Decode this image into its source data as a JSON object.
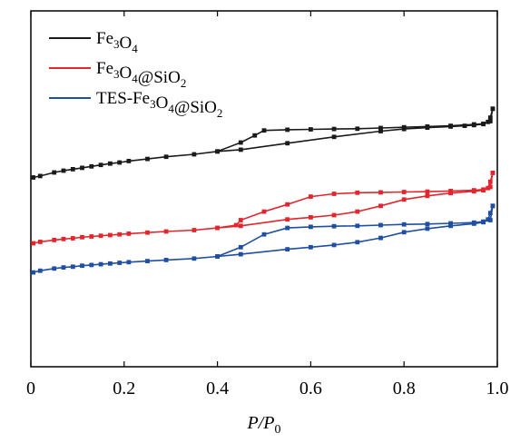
{
  "chart_data": {
    "type": "line",
    "xlabel": "P/P0",
    "xlim": [
      0,
      1.0
    ],
    "ylim": [
      0,
      1.0
    ],
    "x_ticks": [
      "0",
      "0.2",
      "0.4",
      "0.6",
      "0.8",
      "1.0"
    ],
    "x_tick_values": [
      0,
      0.2,
      0.4,
      0.6,
      0.8,
      1.0
    ],
    "legend_position": "top-left",
    "series": [
      {
        "name": "Fe3O4",
        "label_parts": [
          {
            "t": "Fe",
            "s": false
          },
          {
            "t": "3",
            "s": true
          },
          {
            "t": "O",
            "s": false
          },
          {
            "t": "4",
            "s": true
          }
        ],
        "color": "#1a1a1a",
        "adsorption": [
          [
            0.005,
            0.532
          ],
          [
            0.02,
            0.536
          ],
          [
            0.05,
            0.546
          ],
          [
            0.07,
            0.551
          ],
          [
            0.09,
            0.555
          ],
          [
            0.11,
            0.559
          ],
          [
            0.13,
            0.563
          ],
          [
            0.15,
            0.567
          ],
          [
            0.17,
            0.571
          ],
          [
            0.19,
            0.574
          ],
          [
            0.21,
            0.578
          ],
          [
            0.25,
            0.584
          ],
          [
            0.29,
            0.59
          ],
          [
            0.35,
            0.597
          ],
          [
            0.4,
            0.605
          ],
          [
            0.45,
            0.61
          ],
          [
            0.55,
            0.628
          ],
          [
            0.65,
            0.646
          ],
          [
            0.75,
            0.662
          ],
          [
            0.8,
            0.668
          ],
          [
            0.85,
            0.672
          ],
          [
            0.9,
            0.675
          ],
          [
            0.93,
            0.677
          ],
          [
            0.95,
            0.679
          ],
          [
            0.97,
            0.682
          ],
          [
            0.98,
            0.688
          ],
          [
            0.985,
            0.7
          ],
          [
            0.99,
            0.725
          ]
        ],
        "desorption": [
          [
            0.99,
            0.725
          ],
          [
            0.985,
            0.69
          ],
          [
            0.97,
            0.683
          ],
          [
            0.95,
            0.681
          ],
          [
            0.9,
            0.677
          ],
          [
            0.85,
            0.675
          ],
          [
            0.8,
            0.673
          ],
          [
            0.75,
            0.671
          ],
          [
            0.7,
            0.669
          ],
          [
            0.65,
            0.668
          ],
          [
            0.6,
            0.667
          ],
          [
            0.55,
            0.666
          ],
          [
            0.5,
            0.664
          ],
          [
            0.48,
            0.65
          ],
          [
            0.45,
            0.63
          ],
          [
            0.4,
            0.605
          ]
        ]
      },
      {
        "name": "Fe3O4@SiO2",
        "label_parts": [
          {
            "t": "Fe",
            "s": false
          },
          {
            "t": "3",
            "s": true
          },
          {
            "t": "O",
            "s": false
          },
          {
            "t": "4",
            "s": true
          },
          {
            "t": "@SiO",
            "s": false
          },
          {
            "t": "2",
            "s": true
          }
        ],
        "color": "#e3262e",
        "adsorption": [
          [
            0.005,
            0.347
          ],
          [
            0.02,
            0.351
          ],
          [
            0.05,
            0.356
          ],
          [
            0.07,
            0.359
          ],
          [
            0.09,
            0.361
          ],
          [
            0.11,
            0.364
          ],
          [
            0.13,
            0.366
          ],
          [
            0.15,
            0.368
          ],
          [
            0.17,
            0.37
          ],
          [
            0.19,
            0.372
          ],
          [
            0.21,
            0.374
          ],
          [
            0.25,
            0.377
          ],
          [
            0.29,
            0.38
          ],
          [
            0.35,
            0.384
          ],
          [
            0.4,
            0.39
          ],
          [
            0.45,
            0.396
          ],
          [
            0.55,
            0.414
          ],
          [
            0.6,
            0.42
          ],
          [
            0.65,
            0.426
          ],
          [
            0.7,
            0.436
          ],
          [
            0.75,
            0.452
          ],
          [
            0.8,
            0.47
          ],
          [
            0.85,
            0.48
          ],
          [
            0.9,
            0.488
          ],
          [
            0.95,
            0.493
          ],
          [
            0.97,
            0.496
          ],
          [
            0.98,
            0.502
          ],
          [
            0.985,
            0.52
          ],
          [
            0.99,
            0.545
          ]
        ],
        "desorption": [
          [
            0.99,
            0.545
          ],
          [
            0.985,
            0.505
          ],
          [
            0.97,
            0.498
          ],
          [
            0.95,
            0.496
          ],
          [
            0.9,
            0.494
          ],
          [
            0.85,
            0.492
          ],
          [
            0.8,
            0.491
          ],
          [
            0.75,
            0.49
          ],
          [
            0.7,
            0.489
          ],
          [
            0.65,
            0.486
          ],
          [
            0.6,
            0.478
          ],
          [
            0.55,
            0.456
          ],
          [
            0.5,
            0.436
          ],
          [
            0.45,
            0.412
          ],
          [
            0.44,
            0.398
          ],
          [
            0.4,
            0.39
          ]
        ]
      },
      {
        "name": "TES-Fe3O4@SiO2",
        "label_parts": [
          {
            "t": "TES-Fe",
            "s": false
          },
          {
            "t": "3",
            "s": true
          },
          {
            "t": "O",
            "s": false
          },
          {
            "t": "4",
            "s": true
          },
          {
            "t": "@SiO",
            "s": false
          },
          {
            "t": "2",
            "s": true
          }
        ],
        "color": "#1f4fa0",
        "adsorption": [
          [
            0.005,
            0.265
          ],
          [
            0.02,
            0.27
          ],
          [
            0.05,
            0.276
          ],
          [
            0.07,
            0.279
          ],
          [
            0.09,
            0.281
          ],
          [
            0.11,
            0.284
          ],
          [
            0.13,
            0.286
          ],
          [
            0.15,
            0.288
          ],
          [
            0.17,
            0.29
          ],
          [
            0.19,
            0.292
          ],
          [
            0.21,
            0.294
          ],
          [
            0.25,
            0.297
          ],
          [
            0.29,
            0.3
          ],
          [
            0.35,
            0.304
          ],
          [
            0.4,
            0.31
          ],
          [
            0.45,
            0.316
          ],
          [
            0.55,
            0.33
          ],
          [
            0.6,
            0.336
          ],
          [
            0.65,
            0.342
          ],
          [
            0.7,
            0.35
          ],
          [
            0.75,
            0.362
          ],
          [
            0.8,
            0.378
          ],
          [
            0.85,
            0.388
          ],
          [
            0.9,
            0.396
          ],
          [
            0.95,
            0.402
          ],
          [
            0.97,
            0.406
          ],
          [
            0.98,
            0.414
          ],
          [
            0.985,
            0.432
          ],
          [
            0.99,
            0.452
          ]
        ],
        "desorption": [
          [
            0.99,
            0.452
          ],
          [
            0.985,
            0.412
          ],
          [
            0.97,
            0.408
          ],
          [
            0.95,
            0.405
          ],
          [
            0.9,
            0.403
          ],
          [
            0.85,
            0.401
          ],
          [
            0.8,
            0.4
          ],
          [
            0.75,
            0.398
          ],
          [
            0.7,
            0.396
          ],
          [
            0.65,
            0.395
          ],
          [
            0.6,
            0.393
          ],
          [
            0.55,
            0.39
          ],
          [
            0.5,
            0.372
          ],
          [
            0.45,
            0.336
          ],
          [
            0.4,
            0.31
          ]
        ]
      }
    ]
  }
}
